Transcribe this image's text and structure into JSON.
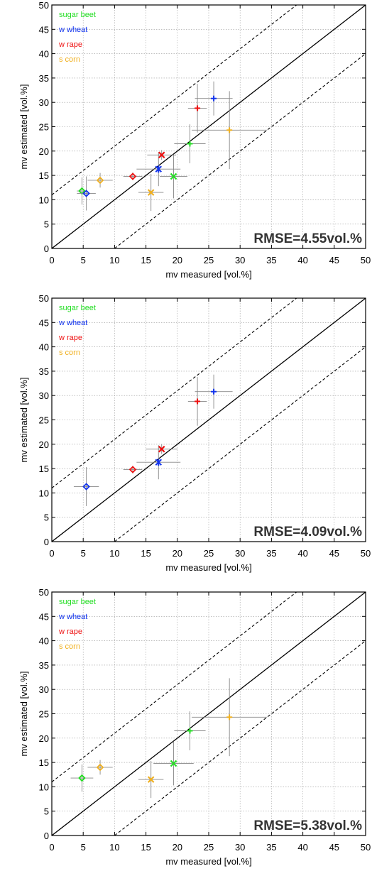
{
  "chart_data": [
    {
      "type": "scatter",
      "xlabel": "mv measured [vol.%]",
      "ylabel": "mv estimated [vol.%]",
      "xlim": [
        0,
        50
      ],
      "ylim": [
        0,
        50
      ],
      "xticks": [
        0,
        5,
        10,
        15,
        20,
        25,
        30,
        35,
        40,
        45,
        50
      ],
      "yticks": [
        0,
        5,
        10,
        15,
        20,
        25,
        30,
        35,
        40,
        45,
        50
      ],
      "grid": true,
      "legend_position": "top-left",
      "annotation": "RMSE=4.55vol.%",
      "reference_lines": [
        {
          "style": "solid",
          "slope": 1,
          "intercept": 0
        },
        {
          "style": "dashed",
          "slope": 1,
          "intercept": 11
        },
        {
          "style": "dashed",
          "slope": 1,
          "intercept": -10
        }
      ],
      "series": [
        {
          "name": "sugar beet",
          "color": "#22dd22",
          "points": [
            {
              "x": 4.8,
              "y": 11.8,
              "xerr": 0.8,
              "yerr": 2.8,
              "marker": "diamond"
            },
            {
              "x": 19.4,
              "y": 14.8,
              "xerr": 2.2,
              "yerr": 4.5,
              "marker": "x"
            },
            {
              "x": 22.0,
              "y": 21.5,
              "xerr": 2.5,
              "yerr": 4.0,
              "marker": "plus"
            }
          ]
        },
        {
          "name": "w wheat",
          "color": "#1133ee",
          "points": [
            {
              "x": 5.5,
              "y": 11.3,
              "xerr": 1.5,
              "yerr": 3.5,
              "marker": "diamond"
            },
            {
              "x": 17.0,
              "y": 16.3,
              "xerr": 3.5,
              "yerr": 3.5,
              "marker": "asterisk"
            },
            {
              "x": 25.8,
              "y": 30.8,
              "xerr": 3.0,
              "yerr": 3.5,
              "marker": "plus"
            }
          ]
        },
        {
          "name": "w rape",
          "color": "#ee1111",
          "points": [
            {
              "x": 12.9,
              "y": 14.8,
              "xerr": 1.5,
              "yerr": 0.8,
              "marker": "diamond"
            },
            {
              "x": 17.5,
              "y": 19.2,
              "xerr": 2.3,
              "yerr": 1.0,
              "marker": "x"
            },
            {
              "x": 23.2,
              "y": 28.8,
              "xerr": 1.5,
              "yerr": 5.0,
              "marker": "plus"
            }
          ]
        },
        {
          "name": "s corn",
          "color": "#f0b020",
          "points": [
            {
              "x": 7.7,
              "y": 14.0,
              "xerr": 2.0,
              "yerr": 1.5,
              "marker": "diamond"
            },
            {
              "x": 15.8,
              "y": 11.5,
              "xerr": 2.0,
              "yerr": 3.8,
              "marker": "x"
            },
            {
              "x": 28.3,
              "y": 24.3,
              "xerr": 6.0,
              "yerr": 8.0,
              "marker": "plus"
            }
          ]
        }
      ]
    },
    {
      "type": "scatter",
      "xlabel": "mv measured [vol.%]",
      "ylabel": "mv estimated [vol.%]",
      "xlim": [
        0,
        50
      ],
      "ylim": [
        0,
        50
      ],
      "xticks": [
        0,
        5,
        10,
        15,
        20,
        25,
        30,
        35,
        40,
        45,
        50
      ],
      "yticks": [
        0,
        5,
        10,
        15,
        20,
        25,
        30,
        35,
        40,
        45,
        50
      ],
      "grid": true,
      "legend_position": "top-left",
      "annotation": "RMSE=4.09vol.%",
      "reference_lines": [
        {
          "style": "solid",
          "slope": 1,
          "intercept": 0
        },
        {
          "style": "dashed",
          "slope": 1,
          "intercept": 11
        },
        {
          "style": "dashed",
          "slope": 1,
          "intercept": -10
        }
      ],
      "series": [
        {
          "name": "sugar beet",
          "color": "#22dd22",
          "points": []
        },
        {
          "name": "w wheat",
          "color": "#1133ee",
          "points": [
            {
              "x": 5.5,
              "y": 11.3,
              "xerr": 2.0,
              "yerr": 4.0,
              "marker": "diamond"
            },
            {
              "x": 17.0,
              "y": 16.3,
              "xerr": 3.5,
              "yerr": 3.5,
              "marker": "asterisk"
            },
            {
              "x": 25.8,
              "y": 30.8,
              "xerr": 3.0,
              "yerr": 3.5,
              "marker": "plus"
            }
          ]
        },
        {
          "name": "w rape",
          "color": "#ee1111",
          "points": [
            {
              "x": 12.9,
              "y": 14.8,
              "xerr": 1.5,
              "yerr": 0.8,
              "marker": "diamond"
            },
            {
              "x": 17.5,
              "y": 19.0,
              "xerr": 2.5,
              "yerr": 1.0,
              "marker": "x"
            },
            {
              "x": 23.2,
              "y": 28.8,
              "xerr": 1.5,
              "yerr": 5.0,
              "marker": "plus"
            }
          ]
        },
        {
          "name": "s corn",
          "color": "#f0b020",
          "points": []
        }
      ]
    },
    {
      "type": "scatter",
      "xlabel": "mv measured [vol.%]",
      "ylabel": "mv estimated [vol.%]",
      "xlim": [
        0,
        50
      ],
      "ylim": [
        0,
        50
      ],
      "xticks": [
        0,
        5,
        10,
        15,
        20,
        25,
        30,
        35,
        40,
        45,
        50
      ],
      "yticks": [
        0,
        5,
        10,
        15,
        20,
        25,
        30,
        35,
        40,
        45,
        50
      ],
      "grid": true,
      "legend_position": "top-left",
      "annotation": "RMSE=5.38vol.%",
      "reference_lines": [
        {
          "style": "solid",
          "slope": 1,
          "intercept": 0
        },
        {
          "style": "dashed",
          "slope": 1,
          "intercept": 11
        },
        {
          "style": "dashed",
          "slope": 1,
          "intercept": -10
        }
      ],
      "series": [
        {
          "name": "sugar beet",
          "color": "#22dd22",
          "points": [
            {
              "x": 4.8,
              "y": 11.8,
              "xerr": 1.8,
              "yerr": 2.8,
              "marker": "diamond"
            },
            {
              "x": 19.4,
              "y": 14.8,
              "xerr": 3.2,
              "yerr": 4.5,
              "marker": "x"
            },
            {
              "x": 22.0,
              "y": 21.5,
              "xerr": 2.5,
              "yerr": 4.0,
              "marker": "plus"
            }
          ]
        },
        {
          "name": "w wheat",
          "color": "#1133ee",
          "points": []
        },
        {
          "name": "w rape",
          "color": "#ee1111",
          "points": []
        },
        {
          "name": "s corn",
          "color": "#f0b020",
          "points": [
            {
              "x": 7.7,
              "y": 14.0,
              "xerr": 2.0,
              "yerr": 1.5,
              "marker": "diamond"
            },
            {
              "x": 15.8,
              "y": 11.5,
              "xerr": 2.0,
              "yerr": 3.8,
              "marker": "x"
            },
            {
              "x": 28.3,
              "y": 24.3,
              "xerr": 6.0,
              "yerr": 8.0,
              "marker": "plus"
            }
          ]
        }
      ]
    }
  ]
}
